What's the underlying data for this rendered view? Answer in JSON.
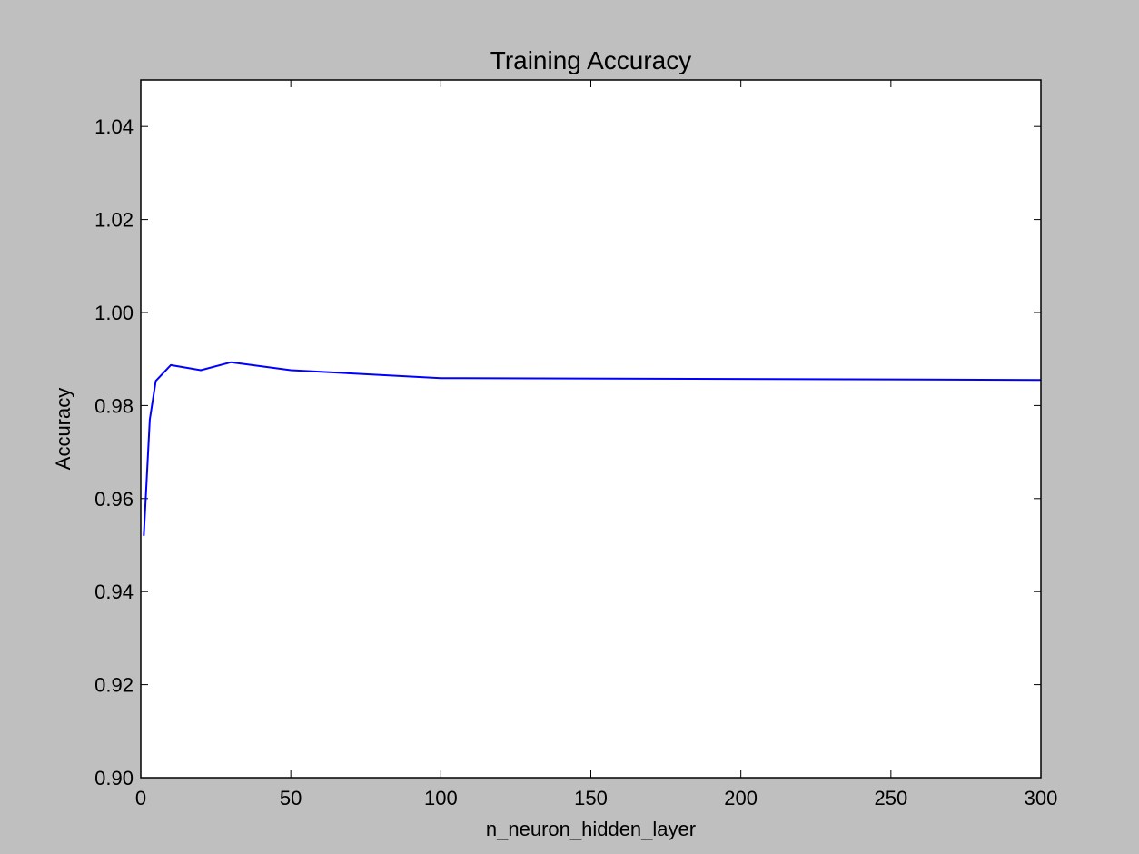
{
  "chart_data": {
    "type": "line",
    "title": "Training Accuracy",
    "xlabel": "n_neuron_hidden_layer",
    "ylabel": "Accuracy",
    "xlim": [
      0,
      300
    ],
    "ylim": [
      0.9,
      1.05
    ],
    "xticks": [
      0,
      50,
      100,
      150,
      200,
      250,
      300
    ],
    "xtick_labels": [
      "0",
      "50",
      "100",
      "150",
      "200",
      "250",
      "300"
    ],
    "yticks": [
      0.9,
      0.92,
      0.94,
      0.96,
      0.98,
      1.0,
      1.02,
      1.04
    ],
    "ytick_labels": [
      "0.90",
      "0.92",
      "0.94",
      "0.96",
      "0.98",
      "1.00",
      "1.02",
      "1.04"
    ],
    "grid": false,
    "series": [
      {
        "color": "#0000ff",
        "x": [
          1,
          3,
          5,
          10,
          20,
          30,
          50,
          100,
          300
        ],
        "y": [
          0.952,
          0.977,
          0.9853,
          0.9887,
          0.9876,
          0.9893,
          0.9876,
          0.9859,
          0.9855
        ]
      }
    ]
  }
}
